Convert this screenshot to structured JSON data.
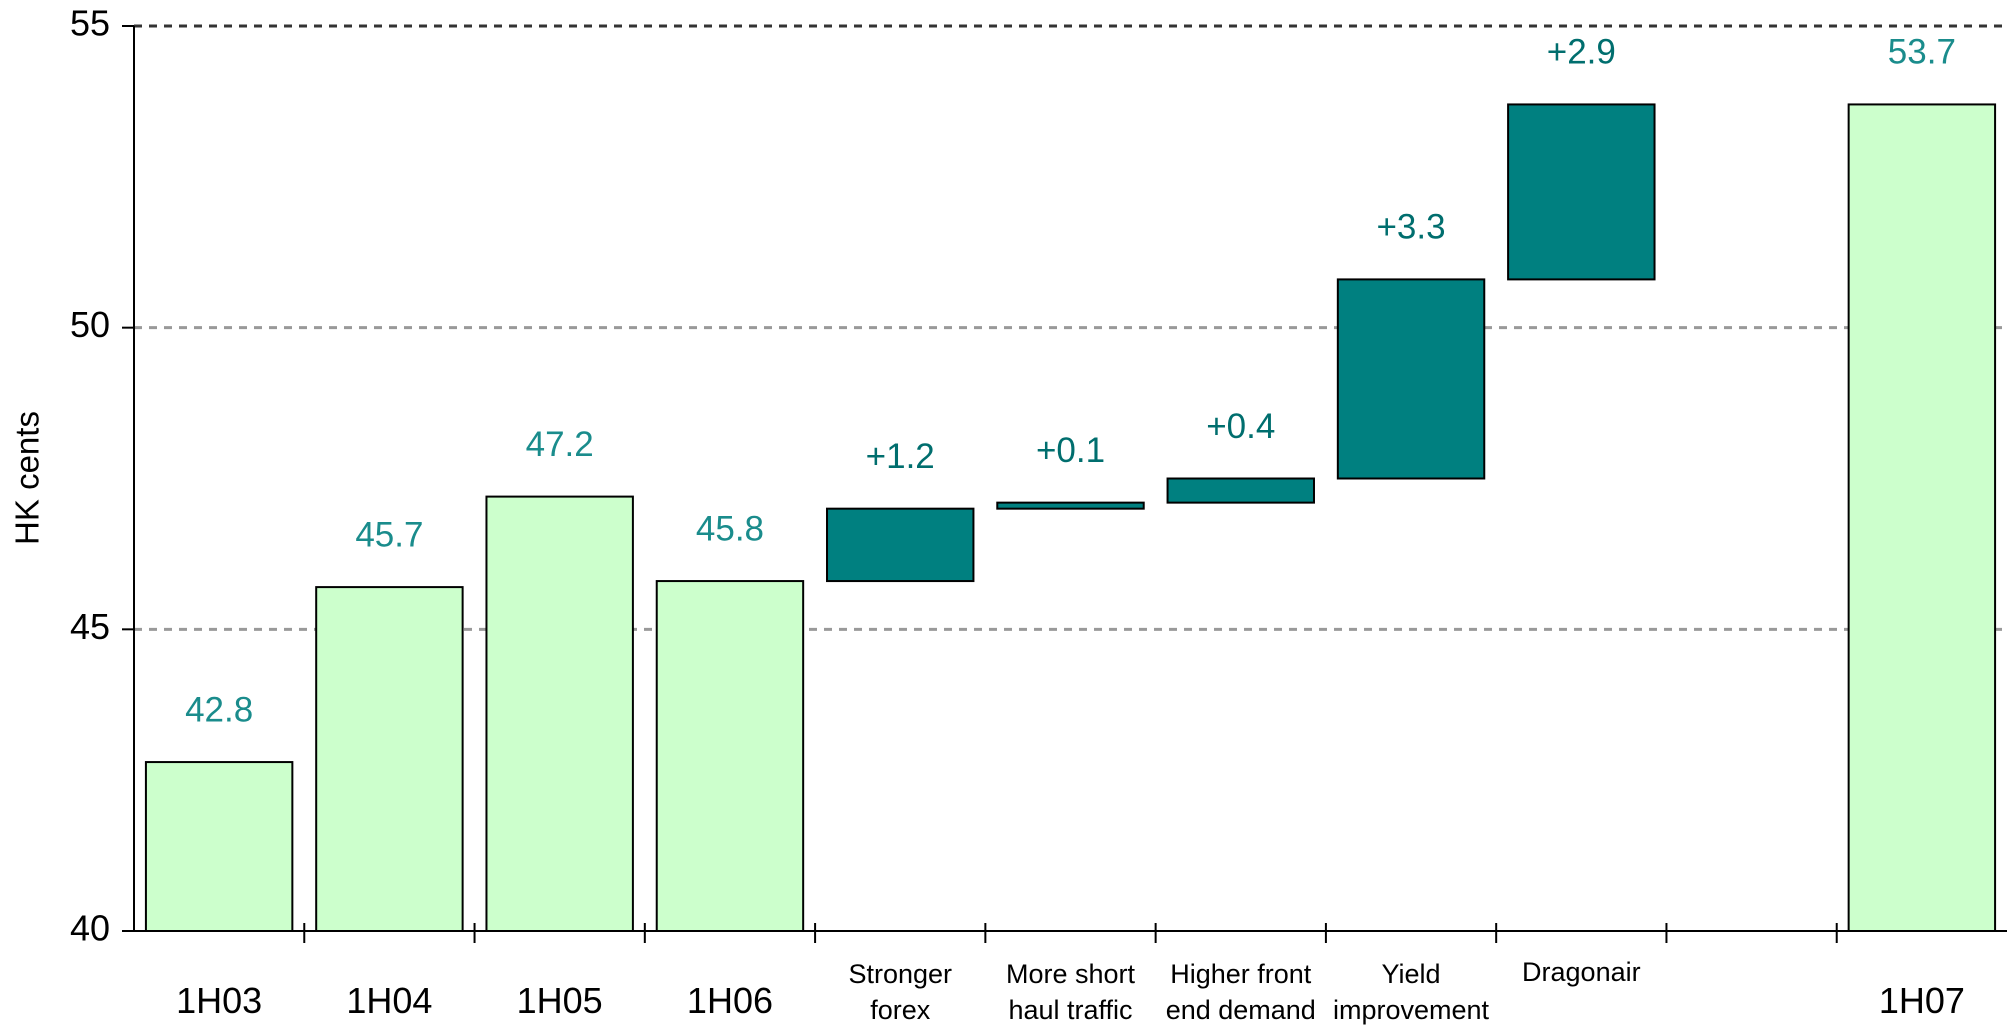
{
  "chart_data": {
    "type": "waterfall",
    "y_label": "HK cents",
    "categories": [
      "1H03",
      "1H04",
      "1H05",
      "1H06",
      "Stronger\nforex",
      "More short\nhaul traffic",
      "Higher front\nend demand",
      "Yield\nimprovement",
      "Dragonair",
      "1H07"
    ],
    "values": [
      42.8,
      45.7,
      47.2,
      45.8,
      1.2,
      0.1,
      0.4,
      3.3,
      2.9,
      53.7
    ],
    "value_labels": [
      "42.8",
      "45.7",
      "47.2",
      "45.8",
      "+1.2",
      "+0.1",
      "+0.4",
      "+3.3",
      "+2.9",
      "53.7"
    ],
    "measures": [
      "absolute",
      "absolute",
      "absolute",
      "absolute",
      "relative",
      "relative",
      "relative",
      "relative",
      "relative",
      "absolute"
    ],
    "absolute_color": "#ccffcc",
    "relative_color": "#008080",
    "absolute_label_color": "#1a8c8c",
    "relative_label_color": "#006e6e",
    "ylim": [
      40,
      55
    ],
    "yticks": [
      40,
      45,
      50,
      55
    ],
    "grid": true
  }
}
